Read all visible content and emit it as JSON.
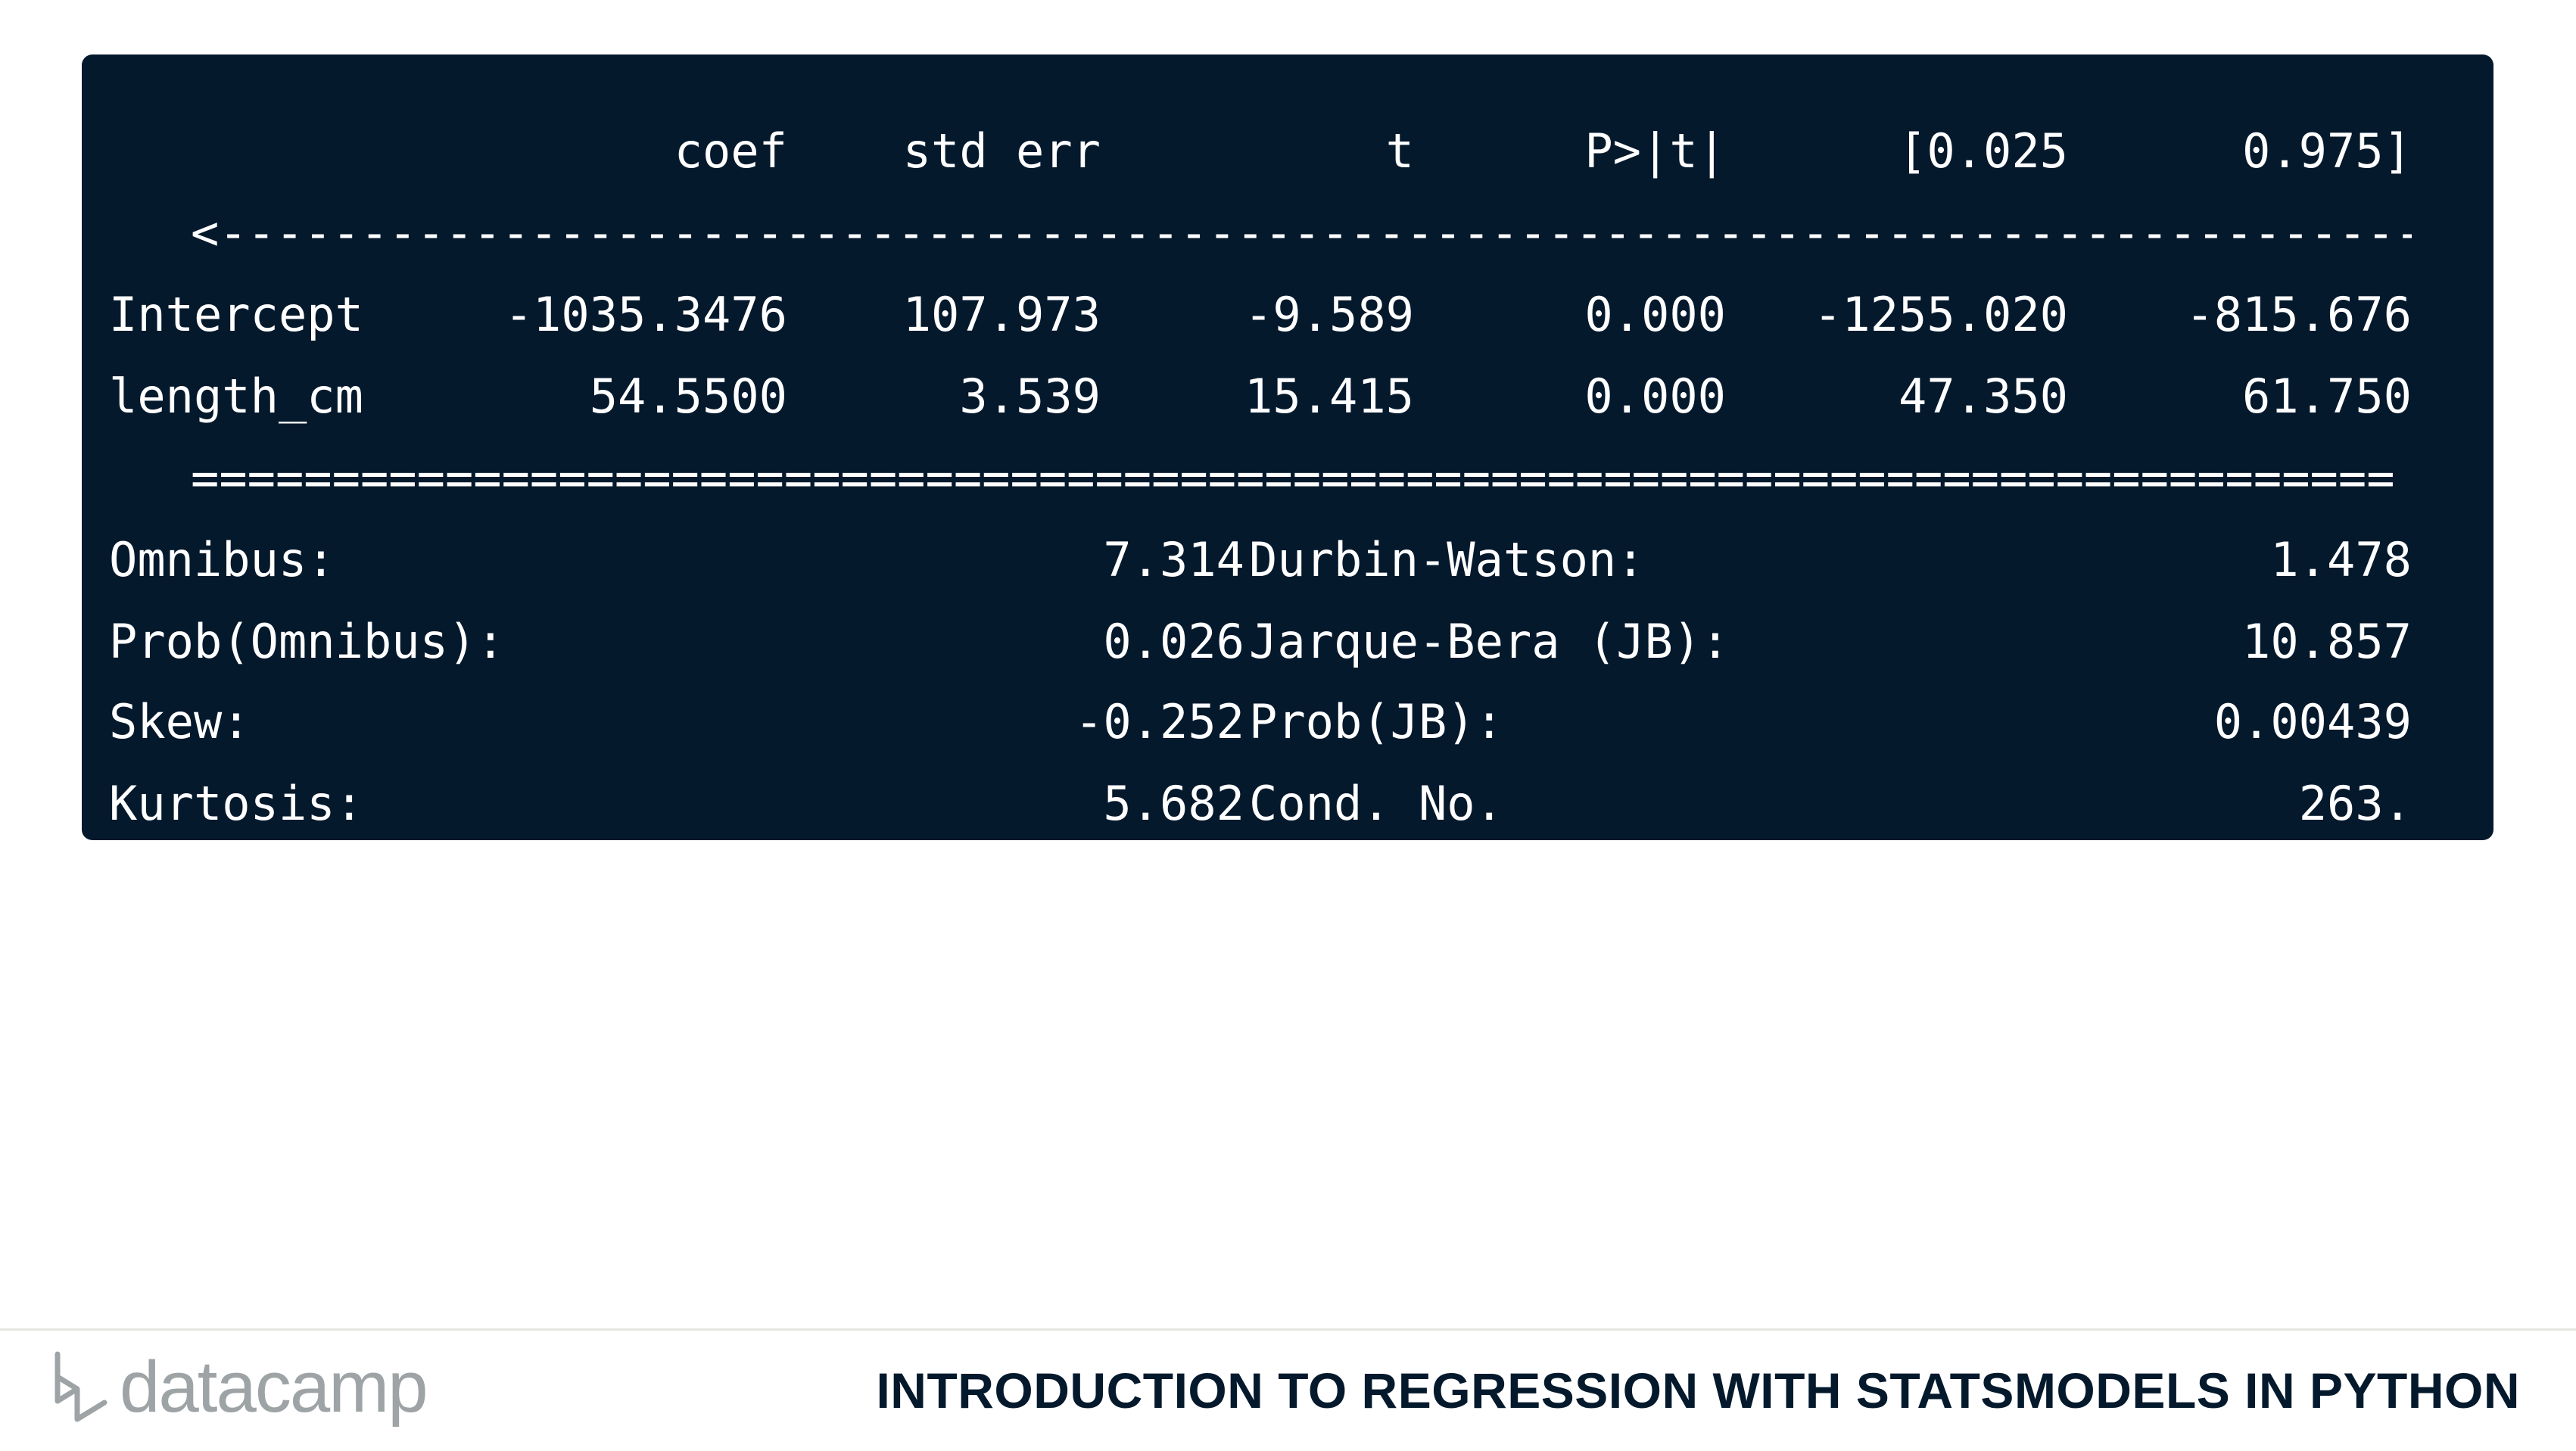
{
  "console": {
    "header": {
      "coef": "coef",
      "std_err": "std err",
      "t": "t",
      "p": "P>|t|",
      "ci_low": "[0.025",
      "ci_high": "0.975]"
    },
    "dash_rule": "<------------------------------------------------------------------------------",
    "rows": [
      {
        "name": "Intercept",
        "coef": "-1035.3476",
        "std_err": "107.973",
        "t": "-9.589",
        "p": "0.000",
        "ci_low": "-1255.020",
        "ci_high": "-815.676"
      },
      {
        "name": "length_cm",
        "coef": "54.5500",
        "std_err": "3.539",
        "t": "15.415",
        "p": "0.000",
        "ci_low": "47.350",
        "ci_high": "61.750"
      }
    ],
    "equals_rule": "==============================================================================",
    "stats": [
      {
        "left_label": "Omnibus:",
        "left_value": "7.314",
        "right_label": "Durbin-Watson:",
        "right_value": "1.478"
      },
      {
        "left_label": "Prob(Omnibus):",
        "left_value": "0.026",
        "right_label": "Jarque-Bera (JB):",
        "right_value": "10.857"
      },
      {
        "left_label": "Skew:",
        "left_value": "-0.252",
        "right_label": "Prob(JB):",
        "right_value": "0.00439"
      },
      {
        "left_label": "Kurtosis:",
        "left_value": "5.682",
        "right_label": "Cond. No.",
        "right_value": "263."
      }
    ]
  },
  "footer": {
    "logo_text": "datacamp",
    "logo_icon": "datacamp-logo-icon",
    "course_title": "INTRODUCTION TO REGRESSION WITH STATSMODELS IN PYTHON"
  },
  "colors": {
    "console_bg": "#05192d",
    "console_text": "#ffffff",
    "logo_gray": "#9ea3a6",
    "title_navy": "#05192d"
  }
}
